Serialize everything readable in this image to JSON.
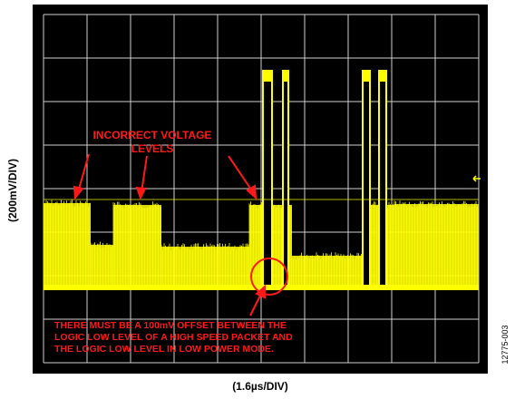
{
  "annotations": {
    "incorrect_levels": [
      "INCORRECT VOLTAGE",
      "LEVELS"
    ],
    "offset_note": [
      "THERE MUST BE A 100mV OFFSET BETWEEN THE",
      "LOGIC LOW LEVEL OF A HIGH SPEED PACKET AND",
      "THE LOGIC LOW LEVEL IN LOW POWER MODE."
    ]
  },
  "axes": {
    "y_label": "(200mV/DIV)",
    "x_label": "(1.6µs/DIV)"
  },
  "figure_id": "12775-003"
}
